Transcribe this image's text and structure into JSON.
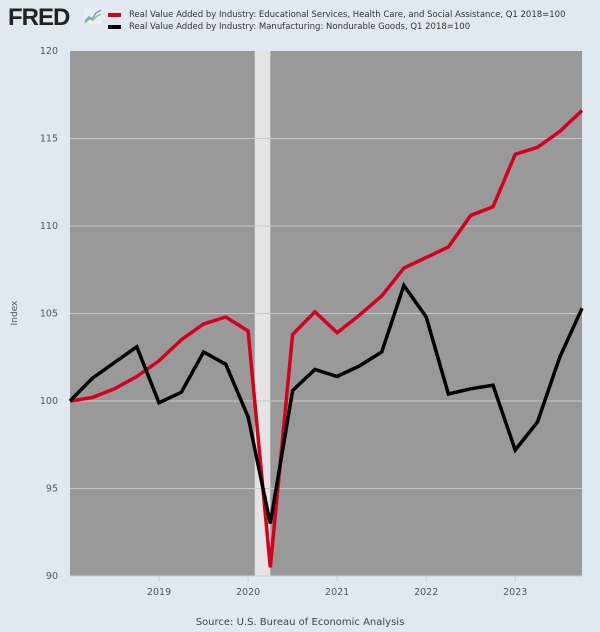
{
  "header": {
    "logo_text": "FRED",
    "logo_icon": "trend-chart-icon"
  },
  "chart_data": {
    "type": "line",
    "title": "",
    "xlabel": "",
    "ylabel": "Index",
    "ylim": [
      90,
      120
    ],
    "yticks": [
      90,
      95,
      100,
      105,
      110,
      115,
      120
    ],
    "xticks": [
      "2019",
      "2020",
      "2021",
      "2022",
      "2023"
    ],
    "grid": true,
    "legend_position": "top",
    "x": [
      "2018-Q1",
      "2018-Q2",
      "2018-Q3",
      "2018-Q4",
      "2019-Q1",
      "2019-Q2",
      "2019-Q3",
      "2019-Q4",
      "2020-Q1",
      "2020-Q2",
      "2020-Q3",
      "2020-Q4",
      "2021-Q1",
      "2021-Q2",
      "2021-Q3",
      "2021-Q4",
      "2022-Q1",
      "2022-Q2",
      "2022-Q3",
      "2022-Q4",
      "2023-Q1",
      "2023-Q2",
      "2023-Q3",
      "2023-Q4"
    ],
    "recession_shading": {
      "start": "2020-Q1",
      "end": "2020-Q2"
    },
    "series": [
      {
        "name": "Real Value Added by Industry: Educational Services, Health Care, and Social Assistance, Q1 2018=100",
        "color": "#d6001c",
        "values": [
          100.0,
          100.2,
          100.7,
          101.4,
          102.3,
          103.5,
          104.4,
          104.8,
          104.0,
          90.5,
          103.8,
          105.1,
          103.9,
          104.9,
          106.0,
          107.6,
          108.2,
          108.8,
          110.6,
          111.1,
          114.1,
          114.5,
          115.4,
          116.6
        ]
      },
      {
        "name": "Real Value Added by Industry: Manufacturing: Nondurable Goods, Q1 2018=100",
        "color": "#000000",
        "values": [
          100.0,
          101.3,
          102.2,
          103.1,
          99.9,
          100.5,
          102.8,
          102.1,
          99.1,
          93.0,
          100.6,
          101.8,
          101.4,
          102.0,
          102.8,
          106.6,
          104.8,
          100.4,
          100.7,
          100.9,
          97.2,
          98.8,
          102.5,
          105.3
        ]
      }
    ],
    "source": "Source: U.S. Bureau of Economic Analysis"
  },
  "colors": {
    "page_bg": "#e1e9f0",
    "plot_bg": "#999999",
    "recession": "#e4e4e4",
    "grid": "#c8c8c8"
  }
}
